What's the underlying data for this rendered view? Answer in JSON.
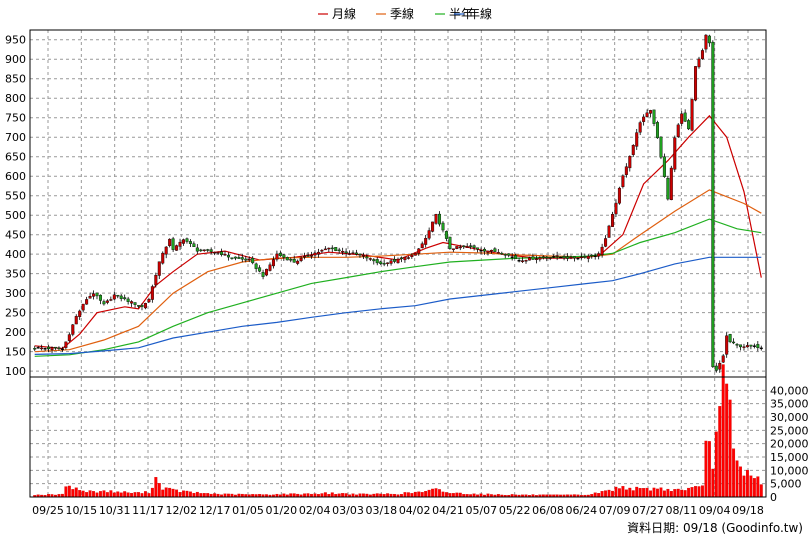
{
  "chart_data": [
    {
      "type": "candlestick",
      "legend": [
        {
          "name": "月線",
          "color": "#cc0000"
        },
        {
          "name": "季線",
          "color": "#e06010"
        },
        {
          "name": "半年",
          "color": "#20b020"
        },
        {
          "name": "年線",
          "color": "#1c5cc8"
        }
      ],
      "ylim": [
        85,
        975
      ],
      "y_ticks": [
        100,
        150,
        200,
        250,
        300,
        350,
        400,
        450,
        500,
        550,
        600,
        650,
        700,
        750,
        800,
        850,
        900,
        950
      ],
      "x_ticks": [
        "09/25",
        "10/15",
        "10/31",
        "11/17",
        "12/02",
        "12/17",
        "01/05",
        "01/20",
        "02/04",
        "03/03",
        "03/18",
        "04/02",
        "04/21",
        "05/07",
        "05/22",
        "06/08",
        "06/24",
        "07/09",
        "07/27",
        "08/11",
        "09/04",
        "09/18"
      ],
      "grid": true,
      "colors": {
        "up": "#cc0000",
        "down": "#20a020",
        "flat": "#000000"
      },
      "close_anchors": [
        [
          0,
          160
        ],
        [
          8,
          157
        ],
        [
          9,
          175
        ],
        [
          12,
          240
        ],
        [
          15,
          285
        ],
        [
          17,
          300
        ],
        [
          20,
          270
        ],
        [
          23,
          295
        ],
        [
          27,
          280
        ],
        [
          31,
          265
        ],
        [
          33,
          285
        ],
        [
          36,
          380
        ],
        [
          39,
          440
        ],
        [
          40,
          410
        ],
        [
          43,
          440
        ],
        [
          47,
          410
        ],
        [
          53,
          405
        ],
        [
          57,
          390
        ],
        [
          62,
          385
        ],
        [
          66,
          345
        ],
        [
          70,
          400
        ],
        [
          75,
          380
        ],
        [
          80,
          400
        ],
        [
          85,
          415
        ],
        [
          90,
          405
        ],
        [
          95,
          395
        ],
        [
          100,
          375
        ],
        [
          105,
          385
        ],
        [
          110,
          400
        ],
        [
          113,
          440
        ],
        [
          116,
          500
        ],
        [
          118,
          460
        ],
        [
          120,
          415
        ],
        [
          125,
          420
        ],
        [
          130,
          410
        ],
        [
          135,
          405
        ],
        [
          140,
          385
        ],
        [
          145,
          390
        ],
        [
          150,
          395
        ],
        [
          155,
          390
        ],
        [
          160,
          395
        ],
        [
          163,
          400
        ],
        [
          165,
          440
        ],
        [
          167,
          500
        ],
        [
          170,
          600
        ],
        [
          173,
          680
        ],
        [
          175,
          740
        ],
        [
          178,
          770
        ],
        [
          180,
          700
        ],
        [
          182,
          600
        ],
        [
          183,
          540
        ],
        [
          185,
          700
        ],
        [
          187,
          760
        ],
        [
          189,
          720
        ],
        [
          191,
          880
        ],
        [
          193,
          920
        ],
        [
          194,
          960
        ],
        [
          195,
          940
        ],
        [
          196,
          110
        ],
        [
          197,
          100
        ],
        [
          198,
          120
        ],
        [
          199,
          140
        ],
        [
          200,
          190
        ],
        [
          201,
          175
        ],
        [
          203,
          165
        ],
        [
          210,
          162
        ]
      ],
      "moving_averages": {
        "月線": [
          [
            0,
            165
          ],
          [
            8,
            158
          ],
          [
            13,
            195
          ],
          [
            18,
            250
          ],
          [
            26,
            265
          ],
          [
            30,
            260
          ],
          [
            35,
            320
          ],
          [
            40,
            355
          ],
          [
            47,
            400
          ],
          [
            55,
            408
          ],
          [
            65,
            385
          ],
          [
            75,
            392
          ],
          [
            85,
            405
          ],
          [
            95,
            398
          ],
          [
            105,
            385
          ],
          [
            113,
            415
          ],
          [
            118,
            430
          ],
          [
            125,
            418
          ],
          [
            135,
            400
          ],
          [
            145,
            390
          ],
          [
            155,
            390
          ],
          [
            163,
            395
          ],
          [
            170,
            450
          ],
          [
            176,
            580
          ],
          [
            183,
            640
          ],
          [
            189,
            700
          ],
          [
            195,
            755
          ],
          [
            200,
            700
          ],
          [
            205,
            560
          ],
          [
            210,
            340
          ]
        ],
        "季線": [
          [
            0,
            150
          ],
          [
            10,
            155
          ],
          [
            20,
            180
          ],
          [
            30,
            215
          ],
          [
            40,
            300
          ],
          [
            50,
            355
          ],
          [
            60,
            380
          ],
          [
            70,
            390
          ],
          [
            80,
            392
          ],
          [
            90,
            392
          ],
          [
            100,
            395
          ],
          [
            110,
            400
          ],
          [
            120,
            405
          ],
          [
            130,
            403
          ],
          [
            140,
            398
          ],
          [
            150,
            395
          ],
          [
            160,
            393
          ],
          [
            167,
            400
          ],
          [
            175,
            450
          ],
          [
            185,
            510
          ],
          [
            195,
            565
          ],
          [
            205,
            530
          ],
          [
            210,
            505
          ]
        ],
        "半年": [
          [
            0,
            138
          ],
          [
            10,
            142
          ],
          [
            20,
            155
          ],
          [
            30,
            175
          ],
          [
            40,
            215
          ],
          [
            50,
            250
          ],
          [
            60,
            275
          ],
          [
            70,
            300
          ],
          [
            80,
            325
          ],
          [
            90,
            340
          ],
          [
            100,
            355
          ],
          [
            110,
            368
          ],
          [
            120,
            380
          ],
          [
            130,
            385
          ],
          [
            140,
            390
          ],
          [
            150,
            392
          ],
          [
            160,
            395
          ],
          [
            167,
            402
          ],
          [
            175,
            430
          ],
          [
            185,
            455
          ],
          [
            195,
            490
          ],
          [
            203,
            465
          ],
          [
            210,
            455
          ]
        ],
        "年線": [
          [
            0,
            143
          ],
          [
            10,
            145
          ],
          [
            20,
            152
          ],
          [
            30,
            160
          ],
          [
            40,
            185
          ],
          [
            50,
            200
          ],
          [
            60,
            215
          ],
          [
            70,
            225
          ],
          [
            80,
            238
          ],
          [
            90,
            250
          ],
          [
            100,
            260
          ],
          [
            110,
            268
          ],
          [
            120,
            285
          ],
          [
            130,
            295
          ],
          [
            140,
            305
          ],
          [
            150,
            315
          ],
          [
            160,
            325
          ],
          [
            167,
            332
          ],
          [
            175,
            350
          ],
          [
            185,
            375
          ],
          [
            195,
            392
          ],
          [
            200,
            392
          ],
          [
            210,
            392
          ]
        ]
      }
    },
    {
      "type": "bar",
      "series_name": "volume",
      "ylim": [
        0,
        45000
      ],
      "y_ticks": [
        0,
        5000,
        10000,
        15000,
        20000,
        25000,
        30000,
        35000,
        40000
      ],
      "y_tick_labels": [
        "0",
        "5,000",
        "10,000",
        "15,000",
        "20,000",
        "25,000",
        "30,000",
        "35,000",
        "40,000"
      ],
      "volume_anchors": [
        [
          0,
          800
        ],
        [
          8,
          900
        ],
        [
          9,
          5000
        ],
        [
          12,
          3000
        ],
        [
          15,
          2000
        ],
        [
          20,
          2200
        ],
        [
          25,
          1800
        ],
        [
          30,
          1500
        ],
        [
          33,
          1800
        ],
        [
          35,
          6800
        ],
        [
          37,
          3500
        ],
        [
          40,
          2500
        ],
        [
          47,
          1500
        ],
        [
          55,
          1000
        ],
        [
          65,
          900
        ],
        [
          75,
          1100
        ],
        [
          85,
          1400
        ],
        [
          95,
          1000
        ],
        [
          105,
          1200
        ],
        [
          113,
          2000
        ],
        [
          116,
          2800
        ],
        [
          120,
          1500
        ],
        [
          130,
          1000
        ],
        [
          140,
          800
        ],
        [
          150,
          700
        ],
        [
          160,
          800
        ],
        [
          165,
          2200
        ],
        [
          170,
          3800
        ],
        [
          175,
          2800
        ],
        [
          180,
          3200
        ],
        [
          185,
          2600
        ],
        [
          190,
          3200
        ],
        [
          193,
          3500
        ],
        [
          194,
          24000
        ],
        [
          195,
          18000
        ],
        [
          196,
          14000
        ],
        [
          197,
          23000
        ],
        [
          198,
          30000
        ],
        [
          199,
          41000
        ],
        [
          200,
          38000
        ],
        [
          201,
          30000
        ],
        [
          202,
          17000
        ],
        [
          203,
          13000
        ],
        [
          204,
          10000
        ],
        [
          205,
          8000
        ],
        [
          206,
          9500
        ],
        [
          207,
          10000
        ],
        [
          208,
          7000
        ],
        [
          209,
          6500
        ],
        [
          210,
          5000
        ]
      ]
    }
  ],
  "source": "資料日期: 09/18 (Goodinfo.tw)"
}
